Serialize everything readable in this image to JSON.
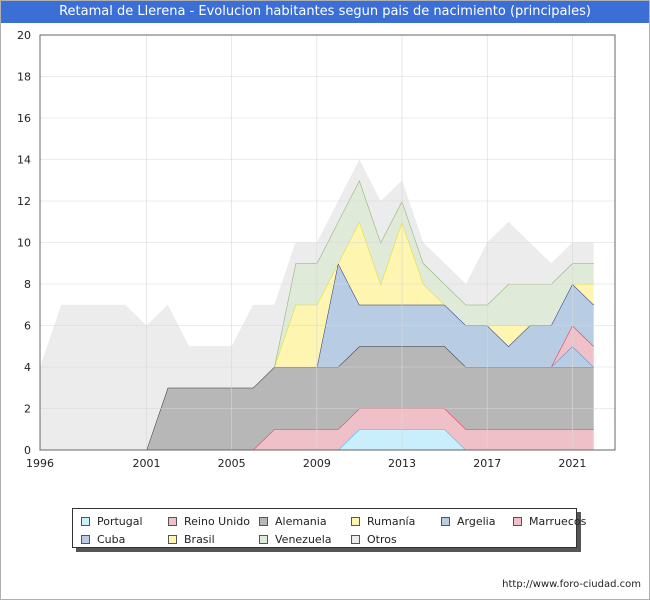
{
  "title": "Retamal de Llerena - Evolucion habitantes segun pais de nacimiento (principales)",
  "footer": "http://www.foro-ciudad.com",
  "chart_data": {
    "type": "area",
    "stacked": true,
    "title": "Retamal de Llerena - Evolucion habitantes segun pais de nacimiento (principales)",
    "xlabel": "",
    "ylabel": "",
    "xlim": [
      1996,
      2023
    ],
    "ylim": [
      0,
      20
    ],
    "x_ticks": [
      1996,
      2001,
      2005,
      2009,
      2013,
      2017,
      2021
    ],
    "y_ticks": [
      0,
      2,
      4,
      6,
      8,
      10,
      12,
      14,
      16,
      18,
      20
    ],
    "grid": true,
    "legend_position": "bottom",
    "x": [
      1996,
      1997,
      1998,
      1999,
      2000,
      2001,
      2002,
      2003,
      2004,
      2005,
      2006,
      2007,
      2008,
      2009,
      2010,
      2011,
      2012,
      2013,
      2014,
      2015,
      2016,
      2017,
      2018,
      2019,
      2020,
      2021,
      2022
    ],
    "series": [
      {
        "name": "Portugal",
        "color": "#c9eefc",
        "edge": "#33bbee",
        "values": [
          0,
          0,
          0,
          0,
          0,
          0,
          0,
          0,
          0,
          0,
          0,
          0,
          0,
          0,
          0,
          1,
          1,
          1,
          1,
          1,
          0,
          0,
          0,
          0,
          0,
          0,
          0
        ]
      },
      {
        "name": "Reino Unido",
        "color": "#f0c0c8",
        "edge": "#ee3355",
        "values": [
          0,
          0,
          0,
          0,
          0,
          0,
          0,
          0,
          0,
          0,
          0,
          1,
          1,
          1,
          1,
          1,
          1,
          1,
          1,
          1,
          1,
          1,
          1,
          1,
          1,
          1,
          1
        ]
      },
      {
        "name": "Alemania",
        "color": "#b7b7b7",
        "edge": "#333333",
        "values": [
          0,
          0,
          0,
          0,
          0,
          0,
          3,
          3,
          3,
          3,
          3,
          3,
          3,
          3,
          3,
          3,
          3,
          3,
          3,
          3,
          3,
          3,
          3,
          3,
          3,
          3,
          3
        ]
      },
      {
        "name": "Rumanía",
        "color": "#fdf5b0",
        "edge": "#dddd33",
        "values": [
          0,
          0,
          0,
          0,
          0,
          0,
          0,
          0,
          0,
          0,
          0,
          0,
          0,
          0,
          0,
          0,
          0,
          0,
          0,
          0,
          0,
          0,
          0,
          0,
          0,
          0,
          0
        ]
      },
      {
        "name": "Argelia",
        "color": "#b8cce4",
        "edge": "#5588cc",
        "values": [
          0,
          0,
          0,
          0,
          0,
          0,
          0,
          0,
          0,
          0,
          0,
          0,
          0,
          0,
          0,
          0,
          0,
          0,
          0,
          0,
          0,
          0,
          0,
          0,
          0,
          1,
          0
        ]
      },
      {
        "name": "Marruecos",
        "color": "#f0c0c8",
        "edge": "#dd3344",
        "values": [
          0,
          0,
          0,
          0,
          0,
          0,
          0,
          0,
          0,
          0,
          0,
          0,
          0,
          0,
          0,
          0,
          0,
          0,
          0,
          0,
          0,
          0,
          0,
          0,
          0,
          1,
          1
        ]
      },
      {
        "name": "Cuba",
        "color": "#b8cce4",
        "edge": "#223388",
        "values": [
          0,
          0,
          0,
          0,
          0,
          0,
          0,
          0,
          0,
          0,
          0,
          0,
          0,
          0,
          5,
          2,
          2,
          2,
          2,
          2,
          2,
          2,
          1,
          2,
          2,
          2,
          2
        ]
      },
      {
        "name": "Brasil",
        "color": "#fdf5b0",
        "edge": "#dddd22",
        "values": [
          0,
          0,
          0,
          0,
          0,
          0,
          0,
          0,
          0,
          0,
          0,
          0,
          3,
          3,
          0,
          4,
          1,
          4,
          1,
          0,
          0,
          0,
          1,
          0,
          0,
          0,
          1
        ]
      },
      {
        "name": "Venezuela",
        "color": "#e0ead8",
        "edge": "#88aa66",
        "values": [
          0,
          0,
          0,
          0,
          0,
          0,
          0,
          0,
          0,
          0,
          0,
          0,
          2,
          2,
          2,
          2,
          2,
          1,
          1,
          1,
          1,
          1,
          2,
          2,
          2,
          1,
          1
        ]
      },
      {
        "name": "Otros",
        "color": "#ececec",
        "edge": "#ececec",
        "values": [
          4,
          7,
          7,
          7,
          7,
          6,
          4,
          2,
          2,
          2,
          4,
          3,
          1,
          1,
          1,
          1,
          2,
          1,
          1,
          1,
          1,
          3,
          3,
          2,
          1,
          1,
          1
        ]
      }
    ]
  },
  "legend": {
    "items": [
      {
        "label": "Portugal",
        "color": "#c9eefc"
      },
      {
        "label": "Reino Unido",
        "color": "#f0c0c8"
      },
      {
        "label": "Alemania",
        "color": "#b7b7b7"
      },
      {
        "label": "Rumanía",
        "color": "#fdf5b0"
      },
      {
        "label": "Argelia",
        "color": "#b8cce4"
      },
      {
        "label": "Marruecos",
        "color": "#f0c0c8"
      },
      {
        "label": "Cuba",
        "color": "#b8cce4"
      },
      {
        "label": "Brasil",
        "color": "#fdf5b0"
      },
      {
        "label": "Venezuela",
        "color": "#e0ead8"
      },
      {
        "label": "Otros",
        "color": "#ececec"
      }
    ]
  }
}
